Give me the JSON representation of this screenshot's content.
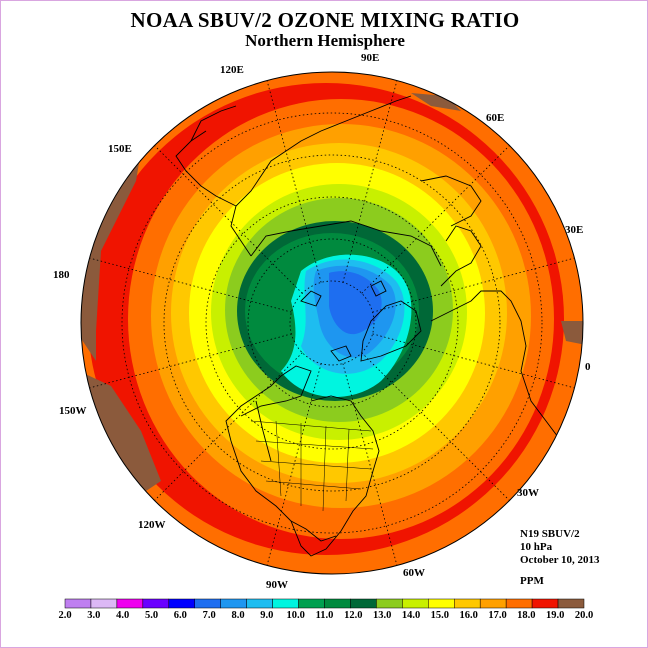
{
  "header": {
    "title": "NOAA SBUV/2 OZONE MIXING RATIO",
    "subtitle": "Northern Hemisphere"
  },
  "longitude_labels": [
    {
      "key": "120e",
      "text": "120E"
    },
    {
      "key": "90e",
      "text": "90E"
    },
    {
      "key": "60e",
      "text": "60E"
    },
    {
      "key": "150e",
      "text": "150E"
    },
    {
      "key": "30e",
      "text": "30E"
    },
    {
      "key": "180",
      "text": "180"
    },
    {
      "key": "0",
      "text": "0"
    },
    {
      "key": "150w",
      "text": "150W"
    },
    {
      "key": "30w",
      "text": "30W"
    },
    {
      "key": "120w",
      "text": "120W"
    },
    {
      "key": "60w",
      "text": "60W"
    },
    {
      "key": "90w",
      "text": "90W"
    }
  ],
  "info": {
    "instrument": "N19 SBUV/2",
    "level": "10 hPa",
    "date": "October 10, 2013",
    "units": "PPM"
  },
  "colorbar": {
    "labels": [
      "2.0",
      "3.0",
      "4.0",
      "5.0",
      "6.0",
      "7.0",
      "8.0",
      "9.0",
      "10.0",
      "11.0",
      "12.0",
      "13.0",
      "14.0",
      "15.0",
      "16.0",
      "17.0",
      "18.0",
      "19.0",
      "20.0"
    ],
    "colors": [
      "#bf7ff0",
      "#dcb8f5",
      "#ee00ee",
      "#6a00ff",
      "#0000ff",
      "#1e6ef0",
      "#1e96f0",
      "#1ebdf0",
      "#00f5e0",
      "#00a050",
      "#008a3e",
      "#006837",
      "#8ccc1e",
      "#c8f000",
      "#ffff00",
      "#ffc800",
      "#ffa000",
      "#ff6e00",
      "#f01400",
      "#8b5a3c"
    ]
  }
}
